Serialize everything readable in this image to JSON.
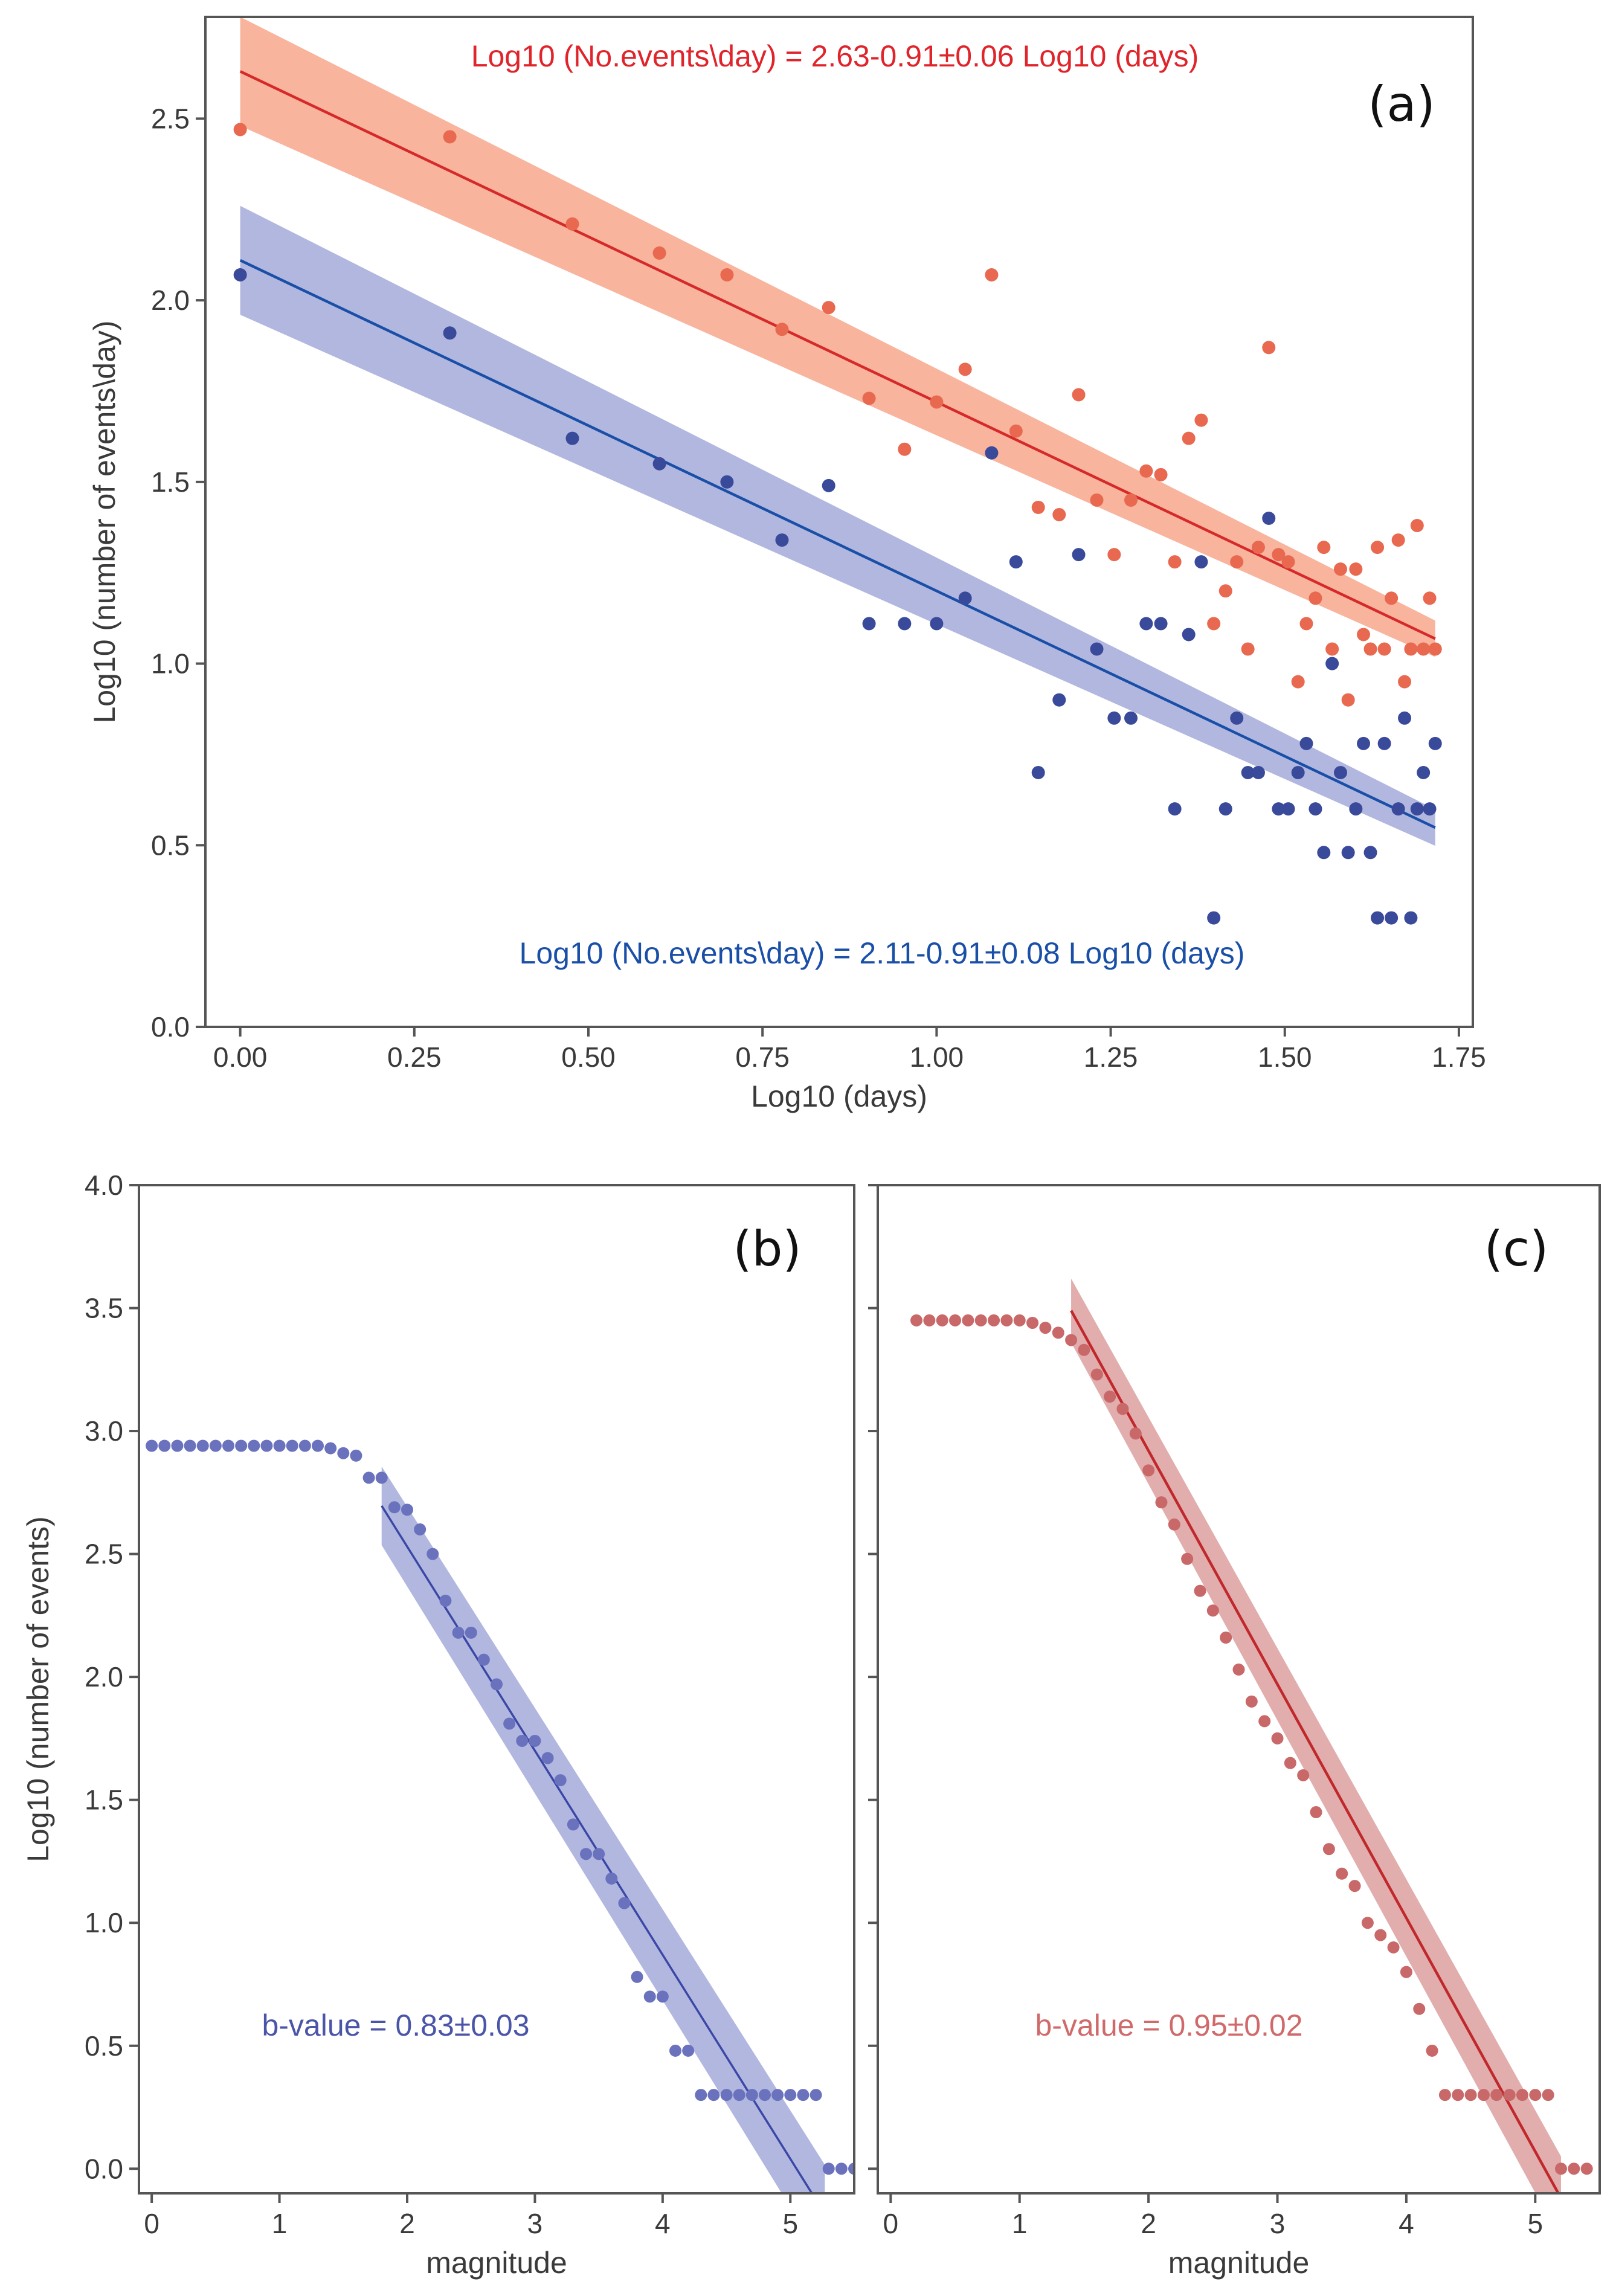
{
  "chart_data": [
    {
      "type": "scatter",
      "panel_label": "(a)",
      "xlabel": "Log10 (days)",
      "ylabel": "Log10 (number of events\\day)",
      "xlim": [
        -0.05,
        1.77
      ],
      "ylim": [
        0.0,
        2.78
      ],
      "xticks": [
        "0.00",
        "0.25",
        "0.50",
        "0.75",
        "1.00",
        "1.25",
        "1.50",
        "1.75"
      ],
      "yticks": [
        "0.0",
        "0.5",
        "1.0",
        "1.5",
        "2.0",
        "2.5"
      ],
      "grid": false,
      "annotations": [
        {
          "text": "Log10 (No.events\\day) = 2.63-0.91±0.06 Log10 (days)",
          "color": "#e0242b"
        },
        {
          "text": "Log10 (No.events\\day) = 2.11-0.91±0.08 Log10 (days)",
          "color": "#1a4fa8"
        }
      ],
      "series": [
        {
          "color": "#e8694f",
          "fit_color": "#d62a2a",
          "band_color": "#f7a78c",
          "x": [
            0.0,
            0.301,
            0.477,
            0.602,
            0.699,
            0.778,
            0.845,
            0.903,
            0.954,
            1.0,
            1.041,
            1.079,
            1.114,
            1.146,
            1.176,
            1.204,
            1.23,
            1.255,
            1.279,
            1.301,
            1.322,
            1.342,
            1.362,
            1.38,
            1.398,
            1.415,
            1.431,
            1.447,
            1.462,
            1.477,
            1.491,
            1.505,
            1.519,
            1.531,
            1.544,
            1.556,
            1.568,
            1.58,
            1.591,
            1.602,
            1.613,
            1.623,
            1.633,
            1.643,
            1.653,
            1.663,
            1.672,
            1.681,
            1.69,
            1.699,
            1.708,
            1.716
          ],
          "y": [
            2.47,
            2.45,
            2.21,
            2.13,
            2.07,
            1.92,
            1.98,
            1.73,
            1.59,
            1.72,
            1.81,
            2.07,
            1.64,
            1.43,
            1.41,
            1.74,
            1.45,
            1.3,
            1.45,
            1.53,
            1.52,
            1.28,
            1.62,
            1.67,
            1.11,
            1.2,
            1.28,
            1.04,
            1.32,
            1.87,
            1.3,
            1.28,
            0.95,
            1.11,
            1.18,
            1.32,
            1.04,
            1.26,
            0.9,
            1.26,
            1.08,
            1.04,
            1.32,
            1.04,
            1.18,
            1.34,
            0.95,
            1.04,
            1.38,
            1.04,
            1.18,
            1.04
          ],
          "fit": {
            "intercept": 2.63,
            "slope": -0.91,
            "band_halfwidth": [
              0.15,
              0.05
            ]
          }
        },
        {
          "color": "#3a4a9a",
          "fit_color": "#1a4fa8",
          "band_color": "#a5aad9",
          "x": [
            0.0,
            0.301,
            0.477,
            0.602,
            0.699,
            0.778,
            0.845,
            0.903,
            0.954,
            1.0,
            1.041,
            1.079,
            1.114,
            1.146,
            1.176,
            1.204,
            1.23,
            1.255,
            1.279,
            1.301,
            1.322,
            1.342,
            1.362,
            1.38,
            1.398,
            1.415,
            1.431,
            1.447,
            1.462,
            1.477,
            1.491,
            1.505,
            1.519,
            1.531,
            1.544,
            1.556,
            1.568,
            1.58,
            1.591,
            1.602,
            1.613,
            1.623,
            1.633,
            1.643,
            1.653,
            1.663,
            1.672,
            1.681,
            1.69,
            1.699,
            1.708,
            1.716
          ],
          "y": [
            2.07,
            1.91,
            1.62,
            1.55,
            1.5,
            1.34,
            1.49,
            1.11,
            1.11,
            1.11,
            1.18,
            1.58,
            1.28,
            0.7,
            0.9,
            1.3,
            1.04,
            0.85,
            0.85,
            1.11,
            1.11,
            0.6,
            1.08,
            1.28,
            0.3,
            0.6,
            0.85,
            0.7,
            0.7,
            1.4,
            0.6,
            0.6,
            0.7,
            0.78,
            0.6,
            0.48,
            1.0,
            0.7,
            0.48,
            0.6,
            0.78,
            0.48,
            0.3,
            0.78,
            0.3,
            0.6,
            0.85,
            0.3,
            0.6,
            0.7,
            0.6,
            0.78
          ],
          "fit": {
            "intercept": 2.11,
            "slope": -0.91,
            "band_halfwidth": [
              0.15,
              0.05
            ]
          }
        }
      ]
    },
    {
      "type": "scatter",
      "panel_label": "(b)",
      "xlabel": "magnitude",
      "ylabel": "Log10 (number of events)",
      "xlim": [
        -0.1,
        5.5
      ],
      "ylim": [
        -0.1,
        4.0
      ],
      "xticks": [
        "0",
        "1",
        "2",
        "3",
        "4",
        "5"
      ],
      "yticks": [
        "0.0",
        "0.5",
        "1.0",
        "1.5",
        "2.0",
        "2.5",
        "3.0",
        "3.5",
        "4.0"
      ],
      "grid": false,
      "annotation": {
        "text": "b-value = 0.83±0.03",
        "color": "#4a55a8"
      },
      "series": [
        {
          "color": "#6a72bd",
          "fit_color": "#3a47a5",
          "band_color": "#a5aadb",
          "x": [
            0.0,
            0.1,
            0.2,
            0.3,
            0.4,
            0.5,
            0.6,
            0.7,
            0.8,
            0.9,
            1.0,
            1.1,
            1.2,
            1.3,
            1.4,
            1.5,
            1.6,
            1.7,
            1.8,
            1.9,
            2.0,
            2.1,
            2.2,
            2.3,
            2.4,
            2.5,
            2.6,
            2.7,
            2.8,
            2.9,
            3.0,
            3.1,
            3.2,
            3.3,
            3.4,
            3.5,
            3.6,
            3.7,
            3.8,
            3.9,
            4.0,
            4.1,
            4.2,
            4.3,
            4.4,
            4.5,
            4.6,
            4.7,
            4.8,
            4.9,
            5.0,
            5.1,
            5.2,
            5.3,
            5.4,
            5.5
          ],
          "y": [
            2.94,
            2.94,
            2.94,
            2.94,
            2.94,
            2.94,
            2.94,
            2.94,
            2.94,
            2.94,
            2.94,
            2.94,
            2.94,
            2.94,
            2.93,
            2.91,
            2.9,
            2.81,
            2.81,
            2.69,
            2.68,
            2.6,
            2.5,
            2.31,
            2.18,
            2.18,
            2.07,
            1.97,
            1.81,
            1.74,
            1.74,
            1.67,
            1.58,
            1.4,
            1.28,
            1.28,
            1.18,
            1.08,
            0.78,
            0.7,
            0.7,
            0.48,
            0.48,
            0.3,
            0.3,
            0.3,
            0.3,
            0.3,
            0.3,
            0.3,
            0.3,
            0.3,
            0.3,
            0.0,
            0.0,
            0.0
          ],
          "fit": {
            "x_start": 1.8,
            "x_end": 5.27,
            "intercept": 4.19,
            "slope": -0.83,
            "band_halfwidth": [
              0.16,
              0.2
            ]
          }
        }
      ]
    },
    {
      "type": "scatter",
      "panel_label": "(c)",
      "xlabel": "magnitude",
      "xlim": [
        -0.1,
        5.5
      ],
      "ylim": [
        -0.1,
        4.0
      ],
      "xticks": [
        "0",
        "1",
        "2",
        "3",
        "4",
        "5"
      ],
      "grid": false,
      "annotation": {
        "text": "b-value = 0.95±0.02",
        "color": "#d06a6a"
      },
      "series": [
        {
          "color": "#c96868",
          "fit_color": "#c0282c",
          "band_color": "#dc9f9f",
          "x": [
            0.2,
            0.3,
            0.4,
            0.5,
            0.6,
            0.7,
            0.8,
            0.9,
            1.0,
            1.1,
            1.2,
            1.3,
            1.4,
            1.5,
            1.6,
            1.7,
            1.8,
            1.9,
            2.0,
            2.1,
            2.2,
            2.3,
            2.4,
            2.5,
            2.6,
            2.7,
            2.8,
            2.9,
            3.0,
            3.1,
            3.2,
            3.3,
            3.4,
            3.5,
            3.6,
            3.7,
            3.8,
            3.9,
            4.0,
            4.1,
            4.2,
            4.3,
            4.4,
            4.5,
            4.6,
            4.7,
            4.8,
            4.9,
            5.0,
            5.1,
            5.2,
            5.3,
            5.4
          ],
          "y": [
            3.45,
            3.45,
            3.45,
            3.45,
            3.45,
            3.45,
            3.45,
            3.45,
            3.45,
            3.44,
            3.42,
            3.4,
            3.37,
            3.33,
            3.23,
            3.14,
            3.09,
            2.99,
            2.84,
            2.71,
            2.62,
            2.48,
            2.35,
            2.27,
            2.16,
            2.03,
            1.9,
            1.82,
            1.75,
            1.65,
            1.6,
            1.45,
            1.3,
            1.2,
            1.15,
            1.0,
            0.95,
            0.9,
            0.8,
            0.65,
            0.48,
            0.3,
            0.3,
            0.3,
            0.3,
            0.3,
            0.3,
            0.3,
            0.3,
            0.3,
            0.0,
            0.0,
            0.0
          ],
          "fit": {
            "x_start": 1.4,
            "x_end": 5.2,
            "intercept": 4.82,
            "slope": -0.95,
            "band_halfwidth": [
              0.13,
              0.17
            ]
          }
        }
      ]
    }
  ]
}
